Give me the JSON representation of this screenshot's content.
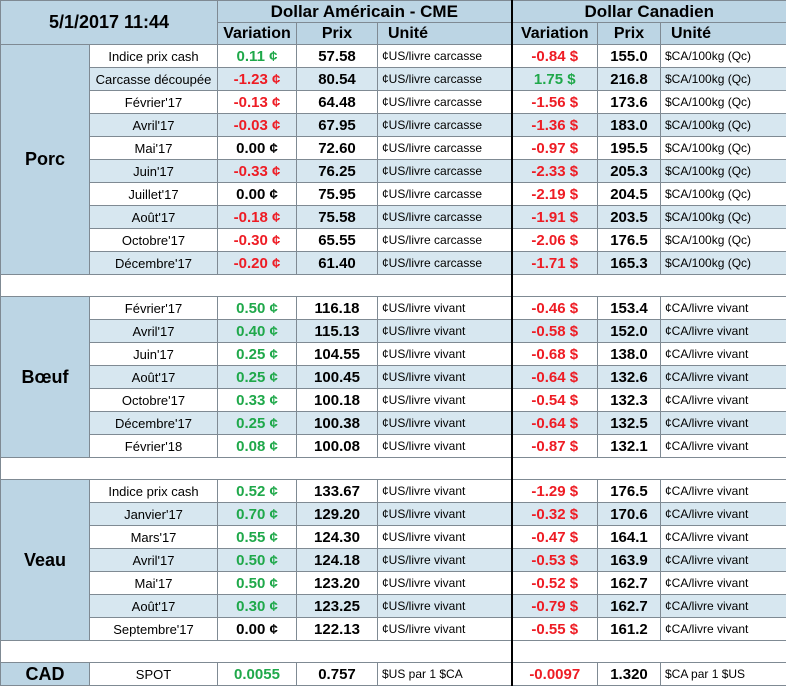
{
  "header": {
    "date": "5/1/2017 11:44",
    "usd_title": "Dollar Américain - CME",
    "cad_title": "Dollar Canadien",
    "col_variation": "Variation",
    "col_prix": "Prix",
    "col_unite": "Unité"
  },
  "colors": {
    "positive": "#1fa84a",
    "negative": "#ee1c24",
    "neutral": "#000000",
    "header_bg": "#bcd5e4",
    "stripe_bg": "#d7e7f0"
  },
  "groups": [
    {
      "name": "Porc",
      "rows": [
        {
          "item": "Indice prix cash",
          "us_var": "0.11 ¢",
          "us_sign": "g",
          "us_prix": "57.58",
          "us_unit": "¢US/livre carcasse",
          "ca_var": "-0.84 $",
          "ca_sign": "r",
          "ca_prix": "155.0",
          "ca_unit": "$CA/100kg (Qc)"
        },
        {
          "item": "Carcasse découpée",
          "us_var": "-1.23 ¢",
          "us_sign": "r",
          "us_prix": "80.54",
          "us_unit": "¢US/livre carcasse",
          "ca_var": "1.75 $",
          "ca_sign": "g",
          "ca_prix": "216.8",
          "ca_unit": "$CA/100kg (Qc)"
        },
        {
          "item": "Février'17",
          "us_var": "-0.13 ¢",
          "us_sign": "r",
          "us_prix": "64.48",
          "us_unit": "¢US/livre carcasse",
          "ca_var": "-1.56 $",
          "ca_sign": "r",
          "ca_prix": "173.6",
          "ca_unit": "$CA/100kg (Qc)"
        },
        {
          "item": "Avril'17",
          "us_var": "-0.03 ¢",
          "us_sign": "r",
          "us_prix": "67.95",
          "us_unit": "¢US/livre carcasse",
          "ca_var": "-1.36 $",
          "ca_sign": "r",
          "ca_prix": "183.0",
          "ca_unit": "$CA/100kg (Qc)"
        },
        {
          "item": "Mai'17",
          "us_var": "0.00 ¢",
          "us_sign": "k",
          "us_prix": "72.60",
          "us_unit": "¢US/livre carcasse",
          "ca_var": "-0.97 $",
          "ca_sign": "r",
          "ca_prix": "195.5",
          "ca_unit": "$CA/100kg (Qc)"
        },
        {
          "item": "Juin'17",
          "us_var": "-0.33 ¢",
          "us_sign": "r",
          "us_prix": "76.25",
          "us_unit": "¢US/livre carcasse",
          "ca_var": "-2.33 $",
          "ca_sign": "r",
          "ca_prix": "205.3",
          "ca_unit": "$CA/100kg (Qc)"
        },
        {
          "item": "Juillet'17",
          "us_var": "0.00 ¢",
          "us_sign": "k",
          "us_prix": "75.95",
          "us_unit": "¢US/livre carcasse",
          "ca_var": "-2.19 $",
          "ca_sign": "r",
          "ca_prix": "204.5",
          "ca_unit": "$CA/100kg (Qc)"
        },
        {
          "item": "Août'17",
          "us_var": "-0.18 ¢",
          "us_sign": "r",
          "us_prix": "75.58",
          "us_unit": "¢US/livre carcasse",
          "ca_var": "-1.91 $",
          "ca_sign": "r",
          "ca_prix": "203.5",
          "ca_unit": "$CA/100kg (Qc)"
        },
        {
          "item": "Octobre'17",
          "us_var": "-0.30 ¢",
          "us_sign": "r",
          "us_prix": "65.55",
          "us_unit": "¢US/livre carcasse",
          "ca_var": "-2.06 $",
          "ca_sign": "r",
          "ca_prix": "176.5",
          "ca_unit": "$CA/100kg (Qc)"
        },
        {
          "item": "Décembre'17",
          "us_var": "-0.20 ¢",
          "us_sign": "r",
          "us_prix": "61.40",
          "us_unit": "¢US/livre carcasse",
          "ca_var": "-1.71 $",
          "ca_sign": "r",
          "ca_prix": "165.3",
          "ca_unit": "$CA/100kg (Qc)"
        }
      ]
    },
    {
      "name": "Bœuf",
      "rows": [
        {
          "item": "Février'17",
          "us_var": "0.50 ¢",
          "us_sign": "g",
          "us_prix": "116.18",
          "us_unit": "¢US/livre vivant",
          "ca_var": "-0.46 $",
          "ca_sign": "r",
          "ca_prix": "153.4",
          "ca_unit": "¢CA/livre vivant"
        },
        {
          "item": "Avril'17",
          "us_var": "0.40 ¢",
          "us_sign": "g",
          "us_prix": "115.13",
          "us_unit": "¢US/livre vivant",
          "ca_var": "-0.58 $",
          "ca_sign": "r",
          "ca_prix": "152.0",
          "ca_unit": "¢CA/livre vivant"
        },
        {
          "item": "Juin'17",
          "us_var": "0.25 ¢",
          "us_sign": "g",
          "us_prix": "104.55",
          "us_unit": "¢US/livre vivant",
          "ca_var": "-0.68 $",
          "ca_sign": "r",
          "ca_prix": "138.0",
          "ca_unit": "¢CA/livre vivant"
        },
        {
          "item": "Août'17",
          "us_var": "0.25 ¢",
          "us_sign": "g",
          "us_prix": "100.45",
          "us_unit": "¢US/livre vivant",
          "ca_var": "-0.64 $",
          "ca_sign": "r",
          "ca_prix": "132.6",
          "ca_unit": "¢CA/livre vivant"
        },
        {
          "item": "Octobre'17",
          "us_var": "0.33 ¢",
          "us_sign": "g",
          "us_prix": "100.18",
          "us_unit": "¢US/livre vivant",
          "ca_var": "-0.54 $",
          "ca_sign": "r",
          "ca_prix": "132.3",
          "ca_unit": "¢CA/livre vivant"
        },
        {
          "item": "Décembre'17",
          "us_var": "0.25 ¢",
          "us_sign": "g",
          "us_prix": "100.38",
          "us_unit": "¢US/livre vivant",
          "ca_var": "-0.64 $",
          "ca_sign": "r",
          "ca_prix": "132.5",
          "ca_unit": "¢CA/livre vivant"
        },
        {
          "item": "Février'18",
          "us_var": "0.08 ¢",
          "us_sign": "g",
          "us_prix": "100.08",
          "us_unit": "¢US/livre vivant",
          "ca_var": "-0.87 $",
          "ca_sign": "r",
          "ca_prix": "132.1",
          "ca_unit": "¢CA/livre vivant"
        }
      ]
    },
    {
      "name": "Veau",
      "rows": [
        {
          "item": "Indice prix cash",
          "us_var": "0.52 ¢",
          "us_sign": "g",
          "us_prix": "133.67",
          "us_unit": "¢US/livre vivant",
          "ca_var": "-1.29 $",
          "ca_sign": "r",
          "ca_prix": "176.5",
          "ca_unit": "¢CA/livre vivant"
        },
        {
          "item": "Janvier'17",
          "us_var": "0.70 ¢",
          "us_sign": "g",
          "us_prix": "129.20",
          "us_unit": "¢US/livre vivant",
          "ca_var": "-0.32 $",
          "ca_sign": "r",
          "ca_prix": "170.6",
          "ca_unit": "¢CA/livre vivant"
        },
        {
          "item": "Mars'17",
          "us_var": "0.55 ¢",
          "us_sign": "g",
          "us_prix": "124.30",
          "us_unit": "¢US/livre vivant",
          "ca_var": "-0.47 $",
          "ca_sign": "r",
          "ca_prix": "164.1",
          "ca_unit": "¢CA/livre vivant"
        },
        {
          "item": "Avril'17",
          "us_var": "0.50 ¢",
          "us_sign": "g",
          "us_prix": "124.18",
          "us_unit": "¢US/livre vivant",
          "ca_var": "-0.53 $",
          "ca_sign": "r",
          "ca_prix": "163.9",
          "ca_unit": "¢CA/livre vivant"
        },
        {
          "item": "Mai'17",
          "us_var": "0.50 ¢",
          "us_sign": "g",
          "us_prix": "123.20",
          "us_unit": "¢US/livre vivant",
          "ca_var": "-0.52 $",
          "ca_sign": "r",
          "ca_prix": "162.7",
          "ca_unit": "¢CA/livre vivant"
        },
        {
          "item": "Août'17",
          "us_var": "0.30 ¢",
          "us_sign": "g",
          "us_prix": "123.25",
          "us_unit": "¢US/livre vivant",
          "ca_var": "-0.79 $",
          "ca_sign": "r",
          "ca_prix": "162.7",
          "ca_unit": "¢CA/livre vivant"
        },
        {
          "item": "Septembre'17",
          "us_var": "0.00 ¢",
          "us_sign": "k",
          "us_prix": "122.13",
          "us_unit": "¢US/livre vivant",
          "ca_var": "-0.55 $",
          "ca_sign": "r",
          "ca_prix": "161.2",
          "ca_unit": "¢CA/livre vivant"
        }
      ]
    }
  ],
  "cad": {
    "name": "CAD",
    "item": "SPOT",
    "us_var": "0.0055",
    "us_sign": "g",
    "us_prix": "0.757",
    "us_unit": "$US par 1 $CA",
    "ca_var": "-0.0097",
    "ca_sign": "r",
    "ca_prix": "1.320",
    "ca_unit": "$CA par 1 $US"
  }
}
